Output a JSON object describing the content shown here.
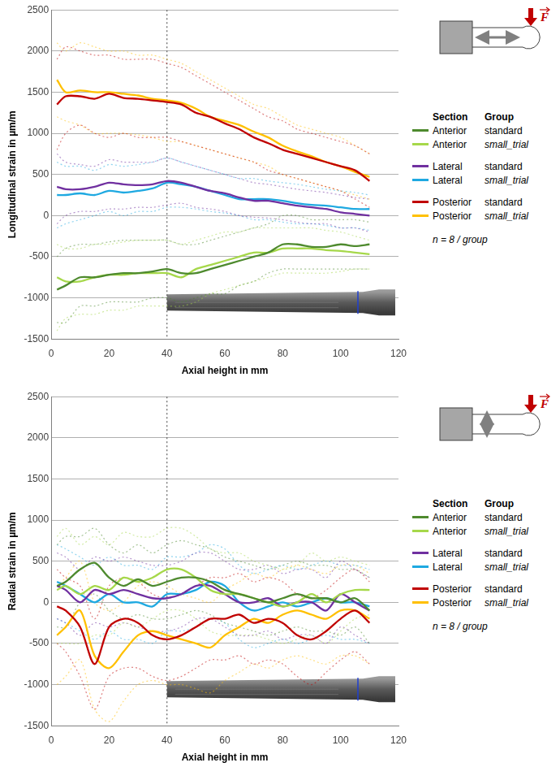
{
  "chart_data": [
    {
      "type": "line",
      "y_label": "Longitudinal strain in µm/m",
      "x_label": "Axial height in mm",
      "xlim": [
        0,
        120
      ],
      "xticks": [
        0,
        20,
        40,
        60,
        80,
        100,
        120
      ],
      "ylim": [
        -1500,
        2500
      ],
      "yticks": [
        -1500,
        -1000,
        -500,
        0,
        500,
        1000,
        1500,
        2000,
        2500
      ],
      "grid": true,
      "legend": "right",
      "legend_header": [
        "Section",
        "Group"
      ],
      "note": "n = 8 / group",
      "force_label": "F",
      "annotations": [
        {
          "x": 40,
          "line_style": "dotted"
        }
      ],
      "x": [
        2,
        5,
        10,
        15,
        20,
        25,
        30,
        35,
        40,
        45,
        50,
        55,
        60,
        65,
        70,
        75,
        80,
        85,
        90,
        95,
        100,
        105,
        110
      ],
      "series": [
        {
          "section": "Anterior",
          "group": "standard",
          "color": "#4e8a2e",
          "line_style": "solid",
          "values": [
            -900,
            -850,
            -750,
            -750,
            -720,
            -700,
            -700,
            -680,
            -650,
            -700,
            -700,
            -650,
            -600,
            -550,
            -500,
            -450,
            -350,
            -350,
            -380,
            -380,
            -350,
            -370,
            -350
          ],
          "upper": [
            -500,
            -400,
            -350,
            -350,
            -320,
            -300,
            -300,
            -300,
            -300,
            -350,
            -350,
            -300,
            -250,
            -200,
            -150,
            -100,
            0,
            0,
            -50,
            -50,
            -50,
            -50,
            -80
          ],
          "lower": [
            -1300,
            -1300,
            -1100,
            -1100,
            -1050,
            -1050,
            -1050,
            -1000,
            -1000,
            -1050,
            -1000,
            -950,
            -950,
            -850,
            -800,
            -700,
            -650,
            -650,
            -650,
            -650,
            -650,
            -650,
            -650
          ]
        },
        {
          "section": "Anterior",
          "group": "small_trial",
          "color": "#a6d84a",
          "line_style": "solid",
          "values": [
            -750,
            -800,
            -800,
            -750,
            -720,
            -720,
            -700,
            -700,
            -700,
            -750,
            -650,
            -600,
            -550,
            -500,
            -450,
            -450,
            -400,
            -400,
            -400,
            -420,
            -430,
            -450,
            -470
          ],
          "upper": [
            -350,
            -400,
            -400,
            -350,
            -350,
            -320,
            -300,
            -300,
            -300,
            -350,
            -300,
            -250,
            -200,
            -200,
            -150,
            -150,
            -150,
            -150,
            -150,
            -180,
            -200,
            -250,
            -300
          ],
          "lower": [
            -1400,
            -1250,
            -1200,
            -1200,
            -1150,
            -1150,
            -1100,
            -1100,
            -1100,
            -1100,
            -1050,
            -950,
            -900,
            -850,
            -800,
            -750,
            -700,
            -700,
            -700,
            -700,
            -680,
            -650,
            -650
          ]
        },
        {
          "section": "Lateral",
          "group": "standard",
          "color": "#7030a0",
          "line_style": "solid",
          "values": [
            350,
            320,
            320,
            350,
            400,
            380,
            370,
            380,
            420,
            400,
            350,
            300,
            270,
            220,
            180,
            180,
            150,
            120,
            100,
            80,
            40,
            20,
            0
          ],
          "upper": [
            750,
            650,
            620,
            600,
            680,
            650,
            650,
            650,
            700,
            650,
            600,
            550,
            500,
            450,
            400,
            380,
            350,
            320,
            300,
            280,
            250,
            220,
            200
          ],
          "lower": [
            -100,
            0,
            50,
            50,
            80,
            80,
            100,
            100,
            130,
            150,
            100,
            80,
            50,
            0,
            -20,
            -30,
            -50,
            -80,
            -100,
            -100,
            -150,
            -150,
            -200
          ]
        },
        {
          "section": "Lateral",
          "group": "small_trial",
          "color": "#1fa9e1",
          "line_style": "solid",
          "values": [
            250,
            250,
            270,
            250,
            300,
            280,
            300,
            330,
            400,
            380,
            350,
            300,
            250,
            200,
            200,
            200,
            180,
            150,
            130,
            120,
            100,
            80,
            80
          ],
          "upper": [
            650,
            600,
            600,
            550,
            620,
            600,
            620,
            650,
            700,
            650,
            600,
            550,
            500,
            450,
            450,
            420,
            400,
            380,
            350,
            320,
            300,
            280,
            250
          ],
          "lower": [
            -150,
            -100,
            -50,
            0,
            50,
            0,
            50,
            50,
            100,
            100,
            80,
            50,
            30,
            0,
            -50,
            -50,
            -80,
            -100,
            -100,
            -120,
            -150,
            -150,
            -180
          ]
        },
        {
          "section": "Posterior",
          "group": "standard",
          "color": "#c00000",
          "line_style": "solid",
          "values": [
            1350,
            1450,
            1450,
            1420,
            1480,
            1430,
            1420,
            1400,
            1380,
            1350,
            1250,
            1200,
            1120,
            1050,
            950,
            880,
            800,
            750,
            700,
            650,
            600,
            550,
            420
          ],
          "upper": [
            1900,
            2050,
            2000,
            1950,
            1950,
            1900,
            1900,
            1900,
            1850,
            1800,
            1700,
            1600,
            1500,
            1400,
            1300,
            1200,
            1150,
            1050,
            1000,
            950,
            900,
            850,
            750
          ],
          "lower": [
            800,
            1000,
            1100,
            1000,
            950,
            1000,
            950,
            950,
            950,
            900,
            850,
            800,
            750,
            700,
            650,
            550,
            500,
            450,
            400,
            350,
            300,
            200,
            100
          ]
        },
        {
          "section": "Posterior",
          "group": "small_trial",
          "color": "#ffc000",
          "line_style": "solid",
          "values": [
            1650,
            1500,
            1520,
            1500,
            1500,
            1480,
            1460,
            1420,
            1400,
            1370,
            1300,
            1200,
            1150,
            1100,
            1020,
            950,
            850,
            780,
            720,
            650,
            600,
            530,
            470
          ],
          "upper": [
            2100,
            2000,
            2100,
            2050,
            2000,
            2000,
            1950,
            1950,
            1900,
            1850,
            1750,
            1650,
            1550,
            1450,
            1350,
            1300,
            1200,
            1100,
            1050,
            1000,
            950,
            850,
            750
          ],
          "lower": [
            1200,
            1150,
            1100,
            1000,
            1000,
            1000,
            980,
            950,
            900,
            900,
            850,
            800,
            750,
            700,
            650,
            600,
            500,
            450,
            400,
            350,
            300,
            250,
            200
          ]
        }
      ]
    },
    {
      "type": "line",
      "y_label": "Radial strain in µm/m",
      "x_label": "Axial height in mm",
      "xlim": [
        0,
        120
      ],
      "xticks": [
        0,
        20,
        40,
        60,
        80,
        100,
        120
      ],
      "ylim": [
        -1500,
        2500
      ],
      "yticks": [
        -1500,
        -1000,
        -500,
        0,
        500,
        1000,
        1500,
        2000,
        2500
      ],
      "grid": true,
      "legend": "right",
      "legend_header": [
        "Section",
        "Group"
      ],
      "note": "n = 8 / group",
      "force_label": "F",
      "annotations": [
        {
          "x": 40,
          "line_style": "dotted"
        }
      ],
      "x": [
        2,
        5,
        10,
        15,
        20,
        25,
        30,
        35,
        40,
        45,
        50,
        55,
        60,
        65,
        70,
        75,
        80,
        85,
        90,
        95,
        100,
        105,
        110
      ],
      "series": [
        {
          "section": "Anterior",
          "group": "standard",
          "color": "#4e8a2e",
          "line_style": "solid",
          "values": [
            200,
            250,
            400,
            480,
            300,
            200,
            280,
            200,
            250,
            300,
            300,
            250,
            150,
            100,
            50,
            0,
            50,
            100,
            50,
            50,
            0,
            50,
            -100
          ],
          "upper": [
            700,
            800,
            800,
            900,
            700,
            600,
            700,
            600,
            700,
            750,
            700,
            650,
            550,
            500,
            450,
            400,
            450,
            500,
            450,
            450,
            400,
            400,
            300
          ],
          "lower": [
            -300,
            -300,
            0,
            100,
            -100,
            -200,
            -150,
            -200,
            -200,
            -150,
            -100,
            -150,
            -250,
            -300,
            -350,
            -400,
            -350,
            -300,
            -350,
            -350,
            -400,
            -300,
            -500
          ]
        },
        {
          "section": "Anterior",
          "group": "small_trial",
          "color": "#a6d84a",
          "line_style": "solid",
          "values": [
            150,
            200,
            100,
            200,
            150,
            300,
            250,
            300,
            400,
            400,
            300,
            150,
            100,
            100,
            50,
            0,
            -50,
            0,
            100,
            0,
            100,
            150,
            150
          ],
          "upper": [
            800,
            900,
            700,
            800,
            700,
            850,
            800,
            800,
            900,
            900,
            800,
            650,
            600,
            600,
            500,
            450,
            400,
            450,
            600,
            500,
            550,
            500,
            450
          ],
          "lower": [
            -500,
            -500,
            -500,
            -400,
            -400,
            -250,
            -300,
            -200,
            -100,
            -100,
            -200,
            -350,
            -400,
            -400,
            -400,
            -450,
            -500,
            -450,
            -400,
            -500,
            -350,
            -200,
            -150
          ]
        },
        {
          "section": "Lateral",
          "group": "standard",
          "color": "#7030a0",
          "line_style": "solid",
          "values": [
            200,
            150,
            0,
            150,
            100,
            150,
            100,
            50,
            50,
            100,
            200,
            200,
            100,
            0,
            0,
            50,
            -50,
            0,
            0,
            -100,
            100,
            0,
            -100
          ],
          "upper": [
            600,
            550,
            400,
            550,
            500,
            550,
            500,
            450,
            450,
            500,
            600,
            600,
            500,
            400,
            400,
            450,
            350,
            400,
            400,
            300,
            500,
            400,
            300
          ],
          "lower": [
            -200,
            -250,
            -400,
            -250,
            -300,
            -250,
            -300,
            -350,
            -350,
            -300,
            -200,
            -200,
            -300,
            -400,
            -400,
            -350,
            -450,
            -400,
            -400,
            -500,
            -300,
            -400,
            -500
          ]
        },
        {
          "section": "Lateral",
          "group": "small_trial",
          "color": "#1fa9e1",
          "line_style": "solid",
          "values": [
            250,
            200,
            100,
            0,
            100,
            0,
            0,
            -50,
            100,
            100,
            150,
            250,
            200,
            0,
            -100,
            -50,
            0,
            -50,
            0,
            50,
            0,
            0,
            -50
          ],
          "upper": [
            700,
            650,
            550,
            450,
            550,
            450,
            450,
            400,
            550,
            550,
            600,
            700,
            650,
            450,
            350,
            400,
            450,
            400,
            450,
            500,
            450,
            450,
            400
          ],
          "lower": [
            -200,
            -250,
            -350,
            -450,
            -350,
            -450,
            -450,
            -500,
            -350,
            -350,
            -300,
            -200,
            -250,
            -450,
            -550,
            -500,
            -450,
            -500,
            -450,
            -400,
            -450,
            -450,
            -500
          ]
        },
        {
          "section": "Posterior",
          "group": "standard",
          "color": "#c00000",
          "line_style": "solid",
          "values": [
            -50,
            -100,
            -300,
            -750,
            -300,
            -200,
            -250,
            -400,
            -450,
            -400,
            -300,
            -200,
            -200,
            -150,
            -250,
            -200,
            -250,
            -400,
            -450,
            -350,
            -200,
            -100,
            -250
          ],
          "upper": [
            400,
            300,
            200,
            -200,
            200,
            300,
            250,
            100,
            50,
            100,
            200,
            300,
            300,
            350,
            250,
            300,
            250,
            100,
            50,
            150,
            300,
            400,
            250
          ],
          "lower": [
            -500,
            -600,
            -900,
            -1300,
            -900,
            -800,
            -800,
            -900,
            -950,
            -900,
            -800,
            -700,
            -700,
            -650,
            -750,
            -700,
            -750,
            -900,
            -1000,
            -850,
            -700,
            -600,
            -750
          ]
        },
        {
          "section": "Posterior",
          "group": "small_trial",
          "color": "#ffc000",
          "line_style": "solid",
          "values": [
            -400,
            -300,
            -100,
            -650,
            -800,
            -600,
            -400,
            -350,
            -400,
            -450,
            -500,
            -550,
            -400,
            -300,
            -200,
            -250,
            -150,
            -100,
            -150,
            -200,
            -100,
            -100,
            -200
          ],
          "upper": [
            200,
            300,
            500,
            0,
            -100,
            0,
            200,
            250,
            200,
            100,
            50,
            0,
            150,
            250,
            350,
            300,
            400,
            450,
            400,
            350,
            450,
            450,
            350
          ],
          "lower": [
            -1000,
            -900,
            -700,
            -1300,
            -1450,
            -1200,
            -1000,
            -950,
            -1000,
            -1000,
            -1050,
            -1100,
            -950,
            -850,
            -750,
            -800,
            -700,
            -650,
            -700,
            -750,
            -650,
            -650,
            -750
          ]
        }
      ]
    }
  ]
}
